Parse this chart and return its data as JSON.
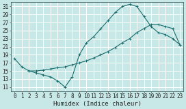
{
  "bg_color": "#c8e8e8",
  "grid_color": "#ffffff",
  "line_color": "#1a6b6b",
  "xlabel": "Humidex (Indice chaleur)",
  "xlim": [
    -0.5,
    23.5
  ],
  "ylim": [
    10,
    32
  ],
  "yticks": [
    11,
    13,
    15,
    17,
    19,
    21,
    23,
    25,
    27,
    29,
    31
  ],
  "xticks": [
    0,
    1,
    2,
    3,
    4,
    5,
    6,
    7,
    8,
    9,
    10,
    11,
    12,
    13,
    14,
    15,
    16,
    17,
    18,
    19,
    20,
    21,
    22,
    23
  ],
  "curve1_x": [
    0,
    1,
    2,
    3,
    4,
    5,
    6,
    7,
    8,
    9,
    10,
    11,
    12,
    13,
    14,
    15,
    16,
    17,
    18,
    19,
    20,
    21,
    22,
    23
  ],
  "curve1_y": [
    18.0,
    16.0,
    15.0,
    14.5,
    14.0,
    13.5,
    12.5,
    11.0,
    13.5,
    19.0,
    22.0,
    23.5,
    25.5,
    27.5,
    29.5,
    31.0,
    31.5,
    31.0,
    28.5,
    26.0,
    24.5,
    24.0,
    23.0,
    21.5
  ],
  "curve2_x": [
    2,
    3,
    4,
    5,
    6,
    7,
    8,
    9,
    10,
    11,
    12,
    13,
    14,
    15,
    16,
    17,
    18,
    19,
    20,
    21,
    22,
    23
  ],
  "curve2_y": [
    15.0,
    15.0,
    15.2,
    15.5,
    15.8,
    16.0,
    16.5,
    17.0,
    17.5,
    18.2,
    19.0,
    19.8,
    20.8,
    22.0,
    23.0,
    24.5,
    25.5,
    26.5,
    26.5,
    26.0,
    25.5,
    21.5
  ],
  "xlabel_fontsize": 6.5,
  "tick_fontsize": 5.5,
  "lw": 0.8,
  "ms": 3.0
}
